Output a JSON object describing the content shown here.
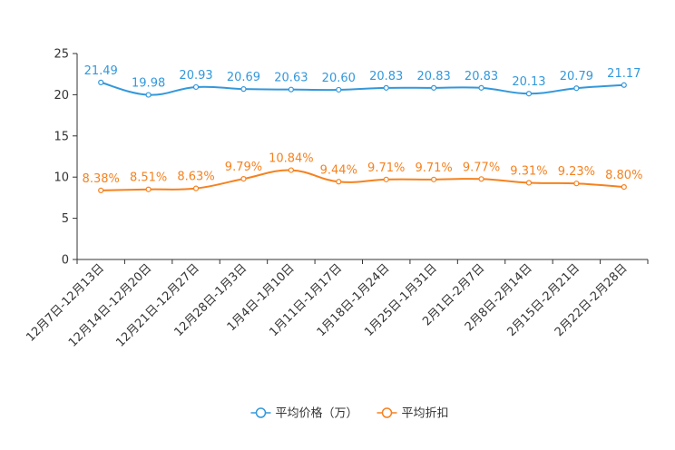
{
  "chart_data": {
    "type": "line",
    "title": "",
    "xlabel": "",
    "ylabel": "",
    "ylim": [
      0,
      25
    ],
    "yticks": [
      0,
      5,
      10,
      15,
      20,
      25
    ],
    "grid": false,
    "legend_position": "bottom-center",
    "categories": [
      "12月7日-12月13日",
      "12月14日-12月20日",
      "12月21日-12月27日",
      "12月28日-1月3日",
      "1月4日-1月10日",
      "1月11日-1月17日",
      "1月18日-1月24日",
      "1月25日-1月31日",
      "2月1日-2月7日",
      "2月8日-2月14日",
      "2月15日-2月21日",
      "2月22日-2月28日"
    ],
    "series": [
      {
        "name": "平均价格（万）",
        "color": "#3398db",
        "values": [
          21.49,
          19.98,
          20.93,
          20.69,
          20.63,
          20.6,
          20.83,
          20.83,
          20.83,
          20.13,
          20.79,
          21.17
        ],
        "labels": [
          "21.49",
          "19.98",
          "20.93",
          "20.69",
          "20.63",
          "20.60",
          "20.83",
          "20.83",
          "20.83",
          "20.13",
          "20.79",
          "21.17"
        ]
      },
      {
        "name": "平均折扣",
        "color": "#f5821f",
        "values": [
          8.38,
          8.51,
          8.63,
          9.79,
          10.84,
          9.44,
          9.71,
          9.71,
          9.77,
          9.31,
          9.23,
          8.8
        ],
        "labels": [
          "8.38%",
          "8.51%",
          "8.63%",
          "9.79%",
          "10.84%",
          "9.44%",
          "9.71%",
          "9.71%",
          "9.77%",
          "9.31%",
          "9.23%",
          "8.80%"
        ]
      }
    ]
  }
}
